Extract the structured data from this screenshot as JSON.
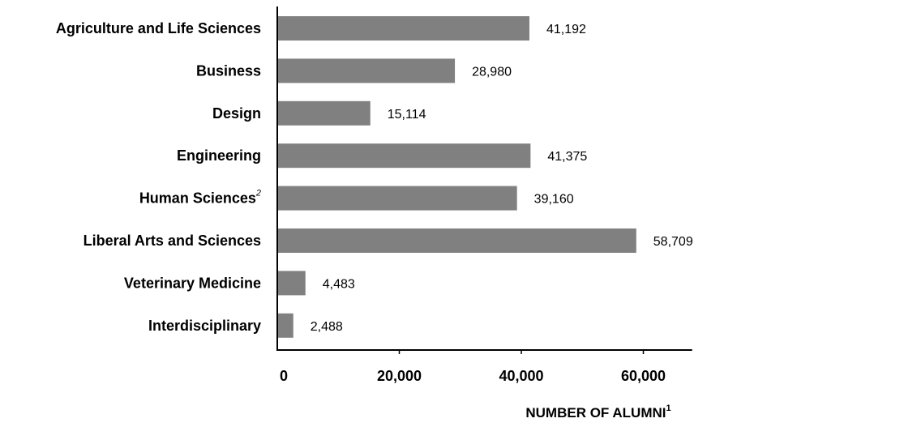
{
  "chart_data": {
    "type": "bar",
    "orientation": "horizontal",
    "categories": [
      "Agriculture and Life Sciences",
      "Business",
      "Design",
      "Engineering",
      "Human Sciences",
      "Liberal Arts and Sciences",
      "Veterinary Medicine",
      "Interdisciplinary"
    ],
    "category_footnotes": [
      "",
      "",
      "",
      "",
      "2",
      "",
      "",
      ""
    ],
    "values": [
      41192,
      28980,
      15114,
      41375,
      39160,
      58709,
      4483,
      2488
    ],
    "value_labels": [
      "41,192",
      "28,980",
      "15,114",
      "41,375",
      "39,160",
      "58,709",
      "4,483",
      "2,488"
    ],
    "xlabel": "NUMBER OF ALUMNI",
    "xlabel_footnote": "1",
    "xlim": [
      0,
      68000
    ],
    "xticks": [
      0,
      20000,
      40000,
      60000
    ],
    "xtick_labels": [
      "0",
      "20,000",
      "40,000",
      "60,000"
    ],
    "grid": false,
    "bar_color": "#808080"
  }
}
